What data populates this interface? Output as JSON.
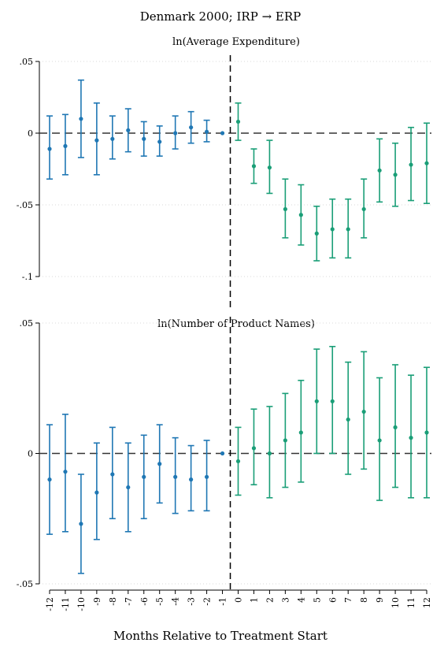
{
  "figure": {
    "title": "Denmark 2000; IRP → ERP",
    "xlabel": "Months Relative to Treatment Start",
    "colors": {
      "pre": "#1f77b4",
      "post": "#1a9e77"
    }
  },
  "chart_data": [
    {
      "type": "scatter",
      "title": "ln(Average Expenditure)",
      "xlabel": "Months Relative to Treatment Start",
      "ylabel": "",
      "ylim": [
        -0.1,
        0.05
      ],
      "yticks": [
        {
          "value": 0.05,
          "label": ".05"
        },
        {
          "value": 0,
          "label": "0"
        },
        {
          "value": -0.05,
          "label": "-.05"
        },
        {
          "value": -0.1,
          "label": "-.1"
        }
      ],
      "xlim": [
        -12,
        12
      ],
      "grid": true,
      "treatment_line_x": -0.5,
      "points": [
        {
          "x": -12,
          "y": -0.011,
          "lo": -0.032,
          "hi": 0.012
        },
        {
          "x": -11,
          "y": -0.009,
          "lo": -0.029,
          "hi": 0.013
        },
        {
          "x": -10,
          "y": 0.01,
          "lo": -0.017,
          "hi": 0.037
        },
        {
          "x": -9,
          "y": -0.005,
          "lo": -0.029,
          "hi": 0.021
        },
        {
          "x": -8,
          "y": -0.004,
          "lo": -0.018,
          "hi": 0.012
        },
        {
          "x": -7,
          "y": 0.002,
          "lo": -0.013,
          "hi": 0.017
        },
        {
          "x": -6,
          "y": -0.004,
          "lo": -0.016,
          "hi": 0.008
        },
        {
          "x": -5,
          "y": -0.006,
          "lo": -0.016,
          "hi": 0.005
        },
        {
          "x": -4,
          "y": 0.0,
          "lo": -0.011,
          "hi": 0.012
        },
        {
          "x": -3,
          "y": 0.004,
          "lo": -0.007,
          "hi": 0.015
        },
        {
          "x": -2,
          "y": 0.001,
          "lo": -0.006,
          "hi": 0.009
        },
        {
          "x": -1,
          "y": 0.0,
          "lo": 0.0,
          "hi": 0.0
        },
        {
          "x": 0,
          "y": 0.008,
          "lo": -0.005,
          "hi": 0.021
        },
        {
          "x": 1,
          "y": -0.023,
          "lo": -0.035,
          "hi": -0.011
        },
        {
          "x": 2,
          "y": -0.024,
          "lo": -0.042,
          "hi": -0.005
        },
        {
          "x": 3,
          "y": -0.053,
          "lo": -0.073,
          "hi": -0.032
        },
        {
          "x": 4,
          "y": -0.057,
          "lo": -0.078,
          "hi": -0.036
        },
        {
          "x": 5,
          "y": -0.07,
          "lo": -0.089,
          "hi": -0.051
        },
        {
          "x": 6,
          "y": -0.067,
          "lo": -0.087,
          "hi": -0.046
        },
        {
          "x": 7,
          "y": -0.067,
          "lo": -0.087,
          "hi": -0.046
        },
        {
          "x": 8,
          "y": -0.053,
          "lo": -0.073,
          "hi": -0.032
        },
        {
          "x": 9,
          "y": -0.026,
          "lo": -0.048,
          "hi": -0.004
        },
        {
          "x": 10,
          "y": -0.029,
          "lo": -0.051,
          "hi": -0.007
        },
        {
          "x": 11,
          "y": -0.022,
          "lo": -0.047,
          "hi": 0.004
        },
        {
          "x": 12,
          "y": -0.021,
          "lo": -0.049,
          "hi": 0.007
        }
      ]
    },
    {
      "type": "scatter",
      "title": "ln(Number of Product Names)",
      "xlabel": "Months Relative to Treatment Start",
      "ylabel": "",
      "ylim": [
        -0.05,
        0.05
      ],
      "yticks": [
        {
          "value": 0.05,
          "label": ".05"
        },
        {
          "value": 0,
          "label": "0"
        },
        {
          "value": -0.05,
          "label": "-.05"
        }
      ],
      "xlim": [
        -12,
        12
      ],
      "xticks": [
        "-12",
        "-11",
        "-10",
        "-9",
        "-8",
        "-7",
        "-6",
        "-5",
        "-4",
        "-3",
        "-2",
        "-1",
        "0",
        "1",
        "2",
        "3",
        "4",
        "5",
        "6",
        "7",
        "8",
        "9",
        "10",
        "11",
        "12"
      ],
      "grid": true,
      "treatment_line_x": -0.5,
      "points": [
        {
          "x": -12,
          "y": -0.01,
          "lo": -0.031,
          "hi": 0.011
        },
        {
          "x": -11,
          "y": -0.007,
          "lo": -0.03,
          "hi": 0.015
        },
        {
          "x": -10,
          "y": -0.027,
          "lo": -0.046,
          "hi": -0.008
        },
        {
          "x": -9,
          "y": -0.015,
          "lo": -0.033,
          "hi": 0.004
        },
        {
          "x": -8,
          "y": -0.008,
          "lo": -0.025,
          "hi": 0.01
        },
        {
          "x": -7,
          "y": -0.013,
          "lo": -0.03,
          "hi": 0.004
        },
        {
          "x": -6,
          "y": -0.009,
          "lo": -0.025,
          "hi": 0.007
        },
        {
          "x": -5,
          "y": -0.004,
          "lo": -0.019,
          "hi": 0.011
        },
        {
          "x": -4,
          "y": -0.009,
          "lo": -0.023,
          "hi": 0.006
        },
        {
          "x": -3,
          "y": -0.01,
          "lo": -0.022,
          "hi": 0.003
        },
        {
          "x": -2,
          "y": -0.009,
          "lo": -0.022,
          "hi": 0.005
        },
        {
          "x": -1,
          "y": 0.0,
          "lo": 0.0,
          "hi": 0.0
        },
        {
          "x": 0,
          "y": -0.003,
          "lo": -0.016,
          "hi": 0.01
        },
        {
          "x": 1,
          "y": 0.002,
          "lo": -0.012,
          "hi": 0.017
        },
        {
          "x": 2,
          "y": 0.0,
          "lo": -0.017,
          "hi": 0.018
        },
        {
          "x": 3,
          "y": 0.005,
          "lo": -0.013,
          "hi": 0.023
        },
        {
          "x": 4,
          "y": 0.008,
          "lo": -0.011,
          "hi": 0.028
        },
        {
          "x": 5,
          "y": 0.02,
          "lo": 0.0,
          "hi": 0.04
        },
        {
          "x": 6,
          "y": 0.02,
          "lo": 0.0,
          "hi": 0.041
        },
        {
          "x": 7,
          "y": 0.013,
          "lo": -0.008,
          "hi": 0.035
        },
        {
          "x": 8,
          "y": 0.016,
          "lo": -0.006,
          "hi": 0.039
        },
        {
          "x": 9,
          "y": 0.005,
          "lo": -0.018,
          "hi": 0.029
        },
        {
          "x": 10,
          "y": 0.01,
          "lo": -0.013,
          "hi": 0.034
        },
        {
          "x": 11,
          "y": 0.006,
          "lo": -0.017,
          "hi": 0.03
        },
        {
          "x": 12,
          "y": 0.008,
          "lo": -0.017,
          "hi": 0.033
        }
      ]
    }
  ]
}
